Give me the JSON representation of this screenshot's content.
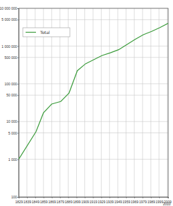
{
  "chart_data": {
    "type": "line",
    "x": [
      1829,
      1850,
      1859,
      1869,
      1880,
      1890,
      1900,
      1910,
      1920,
      1930,
      1940,
      1950,
      1960,
      1970,
      1980,
      1990,
      2000,
      2010
    ],
    "series": [
      {
        "name": "Total",
        "color": "#3c9c3c",
        "values": [
          1000,
          5400,
          17000,
          29000,
          34000,
          57000,
          222000,
          340000,
          437000,
          563000,
          664000,
          800000,
          1100000,
          1500000,
          2000000,
          2450000,
          3100000,
          4000000
        ]
      }
    ],
    "xlim": [
      1829,
      2010
    ],
    "xticks": [
      1829,
      1839,
      1849,
      1859,
      1869,
      1879,
      1889,
      1899,
      1909,
      1919,
      1929,
      1939,
      1949,
      1959,
      1969,
      1979,
      1989,
      1999,
      2009,
      2010
    ],
    "ylim": [
      100,
      10000000
    ],
    "yticks": [
      100,
      {
        "value": 1000,
        "label": "1 000"
      },
      {
        "value": 5000,
        "label": "5 000"
      },
      {
        "value": 10000,
        "label": "10 000"
      },
      {
        "value": 50000,
        "label": "50 000"
      },
      {
        "value": 100000,
        "label": "100 000"
      },
      {
        "value": 500000,
        "label": "500 000"
      },
      {
        "value": 1000000,
        "label": "1 000 000"
      },
      {
        "value": 5000000,
        "label": "5 000 000"
      },
      {
        "value": 10000000,
        "label": "10 000 000"
      }
    ],
    "log": "y",
    "grid": true,
    "legend": "upper left"
  }
}
